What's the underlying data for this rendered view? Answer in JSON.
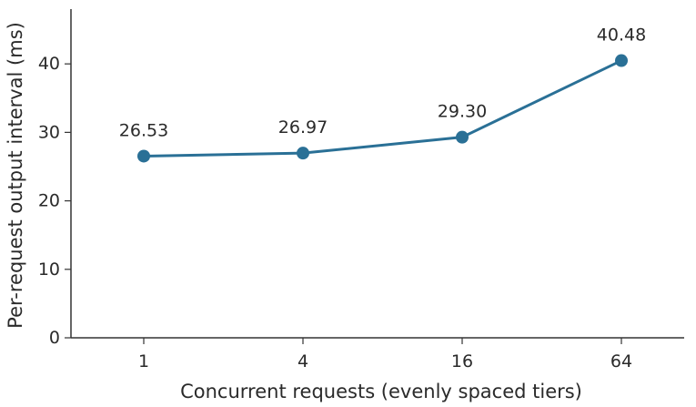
{
  "chart_data": {
    "type": "line",
    "title": "",
    "xlabel": "Concurrent requests (evenly spaced tiers)",
    "ylabel": "Per-request output interval (ms)",
    "categories": [
      "1",
      "4",
      "16",
      "64"
    ],
    "series": [
      {
        "values": [
          26.53,
          26.97,
          29.3,
          40.48
        ],
        "data_labels": [
          "26.53",
          "26.97",
          "29.30",
          "40.48"
        ]
      }
    ],
    "ylim": [
      0,
      48
    ],
    "yticks": [
      0,
      10,
      20,
      30,
      40
    ],
    "ytick_labels": [
      "0",
      "10",
      "20",
      "30",
      "40"
    ],
    "grid": false,
    "legend": "none",
    "colors": {
      "series": "#2a7096",
      "axis": "#333333",
      "text": "#2a2a2a"
    }
  }
}
